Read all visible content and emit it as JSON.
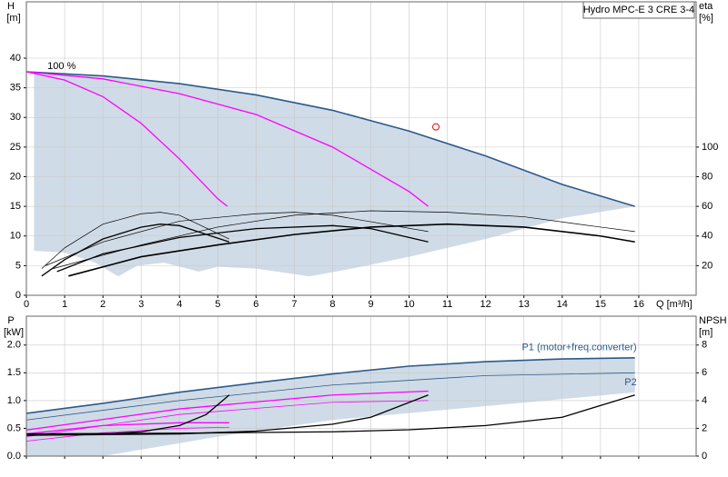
{
  "chart_data": [
    {
      "type": "line",
      "title": "Hydro MPC-E 3 CRE 3-4",
      "ylabel": "H",
      "yunit": "[m]",
      "y2label": "eta",
      "y2unit": "[%]",
      "xlabel": "Q [m³/h]",
      "xlim": [
        0,
        17.5
      ],
      "xticks": [
        0,
        1,
        2,
        3,
        4,
        5,
        6,
        7,
        8,
        9,
        10,
        11,
        12,
        13,
        14,
        15,
        16
      ],
      "xtick_labels": true,
      "ylim": [
        0,
        49.5
      ],
      "yticks": [
        0,
        5,
        10,
        15,
        20,
        25,
        30,
        35,
        40
      ],
      "y2lim": [
        0,
        198
      ],
      "y2ticks": [
        20,
        40,
        60,
        80,
        100
      ],
      "grid": true,
      "annotations": [
        "100 %"
      ],
      "areas": [
        {
          "color": "#cfdbe6",
          "x": [
            0,
            2,
            4,
            6,
            8,
            10,
            12,
            14,
            15.9,
            14,
            12,
            10,
            8.5,
            7.4,
            6,
            5,
            4.5,
            3.6,
            2.9,
            2.4,
            1.8,
            1,
            0.2,
            0.2
          ],
          "values": [
            37.7,
            37,
            35.7,
            33.8,
            31.2,
            27.7,
            23.5,
            18.7,
            15,
            13,
            9.5,
            6.5,
            4.5,
            3.2,
            4.5,
            4.8,
            4,
            5.5,
            5,
            3.2,
            5.5,
            7.2,
            7.5,
            37.7
          ]
        }
      ],
      "series": [
        {
          "color": "#2b5a8a",
          "width": 1.6,
          "x": [
            0,
            2,
            4,
            6,
            8,
            10,
            12,
            14,
            15.9
          ],
          "values": [
            37.7,
            37,
            35.7,
            33.8,
            31.2,
            27.7,
            23.5,
            18.7,
            15
          ]
        },
        {
          "color": "#ff00ff",
          "width": 1.3,
          "x": [
            0,
            1,
            2,
            3,
            4,
            5,
            5.25
          ],
          "values": [
            37.7,
            36.3,
            33.5,
            29,
            23,
            16.3,
            15
          ]
        },
        {
          "color": "#ff00ff",
          "width": 1.3,
          "x": [
            0,
            2,
            4,
            6,
            8,
            10,
            10.5
          ],
          "values": [
            37.7,
            36.5,
            34,
            30.5,
            25,
            17.5,
            15
          ]
        },
        {
          "color": "#000000",
          "width": 1.6,
          "axis": "y2",
          "x": [
            1.1,
            3,
            5,
            7,
            9,
            11,
            13,
            15,
            15.9
          ],
          "values": [
            13,
            26,
            34,
            41,
            46,
            48,
            46,
            40,
            36
          ]
        },
        {
          "color": "#000000",
          "width": 0.7,
          "axis": "y2",
          "x": [
            0.7,
            3,
            5,
            7,
            9,
            11,
            13,
            15,
            15.9
          ],
          "values": [
            18,
            34,
            46,
            54,
            57,
            56,
            53,
            46,
            43
          ]
        },
        {
          "color": "#000000",
          "width": 1.3,
          "axis": "y2",
          "x": [
            0.8,
            2,
            4,
            6,
            8,
            9,
            10.5
          ],
          "values": [
            16,
            28,
            39,
            45,
            47,
            45,
            36
          ]
        },
        {
          "color": "#000000",
          "width": 0.7,
          "axis": "y2",
          "x": [
            0.5,
            2,
            4,
            6,
            7,
            8,
            10.5
          ],
          "values": [
            20,
            36,
            50,
            55,
            56,
            54,
            43
          ]
        },
        {
          "color": "#000000",
          "width": 1.3,
          "axis": "y2",
          "x": [
            0.4,
            1,
            2,
            3,
            3.5,
            4,
            5.3
          ],
          "values": [
            13,
            24,
            38,
            46,
            48,
            47,
            36
          ]
        },
        {
          "color": "#000000",
          "width": 0.7,
          "axis": "y2",
          "x": [
            0.4,
            1,
            2,
            3,
            3.5,
            4,
            5.3
          ],
          "values": [
            18,
            32,
            48,
            55,
            56,
            54,
            38
          ]
        }
      ],
      "markers": [
        {
          "color": "#e00000",
          "x": 10.7,
          "value": 28.4
        }
      ]
    },
    {
      "type": "line",
      "ylabel": "P",
      "yunit": "[kW]",
      "y2label": "NPSH",
      "y2unit": "[m]",
      "xlim": [
        0,
        17.5
      ],
      "xticks": [
        0,
        1,
        2,
        3,
        4,
        5,
        6,
        7,
        8,
        9,
        10,
        11,
        12,
        13,
        14,
        15,
        16
      ],
      "xtick_labels": false,
      "ylim": [
        0,
        2.52
      ],
      "yticks": [
        {
          "value": 0,
          "label": "0.0"
        },
        0.5,
        {
          "value": 1,
          "label": "1.0"
        },
        1.5,
        {
          "value": 2,
          "label": "2.0"
        }
      ],
      "y2lim": [
        0,
        10.08
      ],
      "y2ticks": [
        0,
        2,
        4,
        6,
        8
      ],
      "grid": true,
      "areas": [
        {
          "color": "#cfdbe6",
          "x": [
            0,
            2,
            4,
            6,
            8,
            10,
            12,
            14,
            15.9,
            15.9,
            12,
            8,
            5,
            2,
            0,
            0
          ],
          "values": [
            0.77,
            0.95,
            1.15,
            1.32,
            1.48,
            1.62,
            1.7,
            1.75,
            1.77,
            1.15,
            0.9,
            0.65,
            0.35,
            0,
            0,
            0.77
          ]
        }
      ],
      "series": [
        {
          "name": "P1 (motor+freq.converter)",
          "color": "#2b5a8a",
          "width": 1.6,
          "x": [
            0,
            2,
            4,
            6,
            8,
            10,
            12,
            14,
            15.9
          ],
          "values": [
            0.77,
            0.95,
            1.15,
            1.32,
            1.48,
            1.62,
            1.7,
            1.75,
            1.77
          ]
        },
        {
          "name": "P2",
          "color": "#2b5a8a",
          "width": 0.8,
          "x": [
            0,
            4,
            8,
            12,
            15.9
          ],
          "values": [
            0.65,
            1,
            1.28,
            1.45,
            1.5
          ]
        },
        {
          "color": "#ff00ff",
          "width": 1.3,
          "x": [
            0,
            2,
            4,
            5.3
          ],
          "values": [
            0.4,
            0.55,
            0.6,
            0.6
          ]
        },
        {
          "color": "#ff00ff",
          "width": 0.8,
          "x": [
            0,
            2,
            4,
            5.3
          ],
          "values": [
            0.27,
            0.42,
            0.5,
            0.52
          ]
        },
        {
          "color": "#ff00ff",
          "width": 1.3,
          "x": [
            0,
            4,
            8,
            10.5
          ],
          "values": [
            0.47,
            0.85,
            1.1,
            1.17
          ]
        },
        {
          "color": "#ff00ff",
          "width": 0.8,
          "x": [
            0,
            4,
            8,
            10.5
          ],
          "values": [
            0.35,
            0.75,
            0.97,
            1
          ]
        },
        {
          "color": "#000000",
          "width": 1.3,
          "axis": "y2",
          "x": [
            0,
            4,
            8,
            10,
            12,
            14,
            15.9
          ],
          "values": [
            1.6,
            1.65,
            1.75,
            1.9,
            2.2,
            2.8,
            4.4
          ]
        },
        {
          "color": "#000000",
          "width": 1.3,
          "axis": "y2",
          "x": [
            0,
            4,
            6,
            8,
            9,
            10.5
          ],
          "values": [
            1.5,
            1.6,
            1.8,
            2.3,
            2.8,
            4.4
          ]
        },
        {
          "color": "#000000",
          "width": 1.3,
          "axis": "y2",
          "x": [
            0,
            2,
            3,
            4,
            4.7,
            5.3
          ],
          "values": [
            1.5,
            1.6,
            1.75,
            2.2,
            3,
            4.4
          ]
        }
      ]
    }
  ]
}
